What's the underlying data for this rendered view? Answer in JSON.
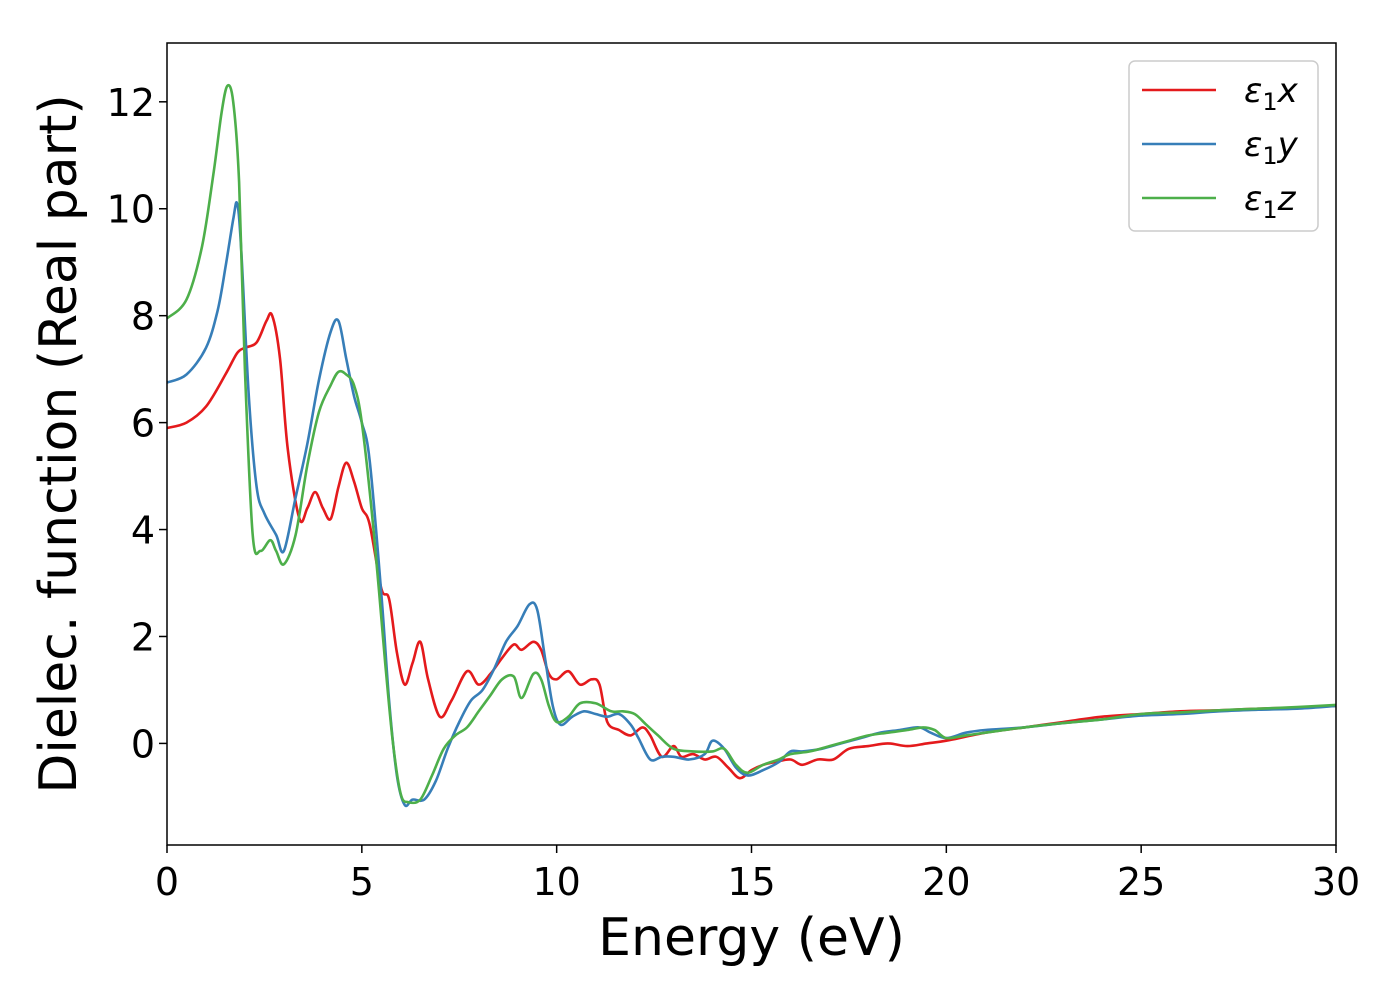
{
  "chart_data": {
    "type": "line",
    "title": "",
    "xlabel": "Energy (eV)",
    "ylabel": "Dielec. function (Real part)",
    "xlim": [
      0,
      30
    ],
    "ylim": [
      -1.9,
      13.1
    ],
    "xticks": [
      0,
      5,
      10,
      15,
      20,
      25,
      30
    ],
    "yticks": [
      0,
      2,
      4,
      6,
      8,
      10,
      12
    ],
    "grid": false,
    "legend_position": "top-right",
    "series": [
      {
        "name": "ε₁x",
        "legend_main": "ε",
        "legend_sub": "1",
        "legend_axis": "x",
        "color": "#e41a1c",
        "x": [
          0,
          0.5,
          1.0,
          1.5,
          1.8,
          2.0,
          2.3,
          2.55,
          2.7,
          2.9,
          3.1,
          3.4,
          3.6,
          3.8,
          4.0,
          4.2,
          4.4,
          4.6,
          4.8,
          5.0,
          5.2,
          5.5,
          5.7,
          5.9,
          6.1,
          6.3,
          6.5,
          6.7,
          7.0,
          7.3,
          7.7,
          8.0,
          8.3,
          8.6,
          8.9,
          9.1,
          9.4,
          9.6,
          9.8,
          10.0,
          10.3,
          10.6,
          10.9,
          11.1,
          11.3,
          11.6,
          11.9,
          12.2,
          12.4,
          12.7,
          13.0,
          13.2,
          13.5,
          13.8,
          14.1,
          14.4,
          14.7,
          15.0,
          15.3,
          15.6,
          16.0,
          16.3,
          16.7,
          17.1,
          17.5,
          18.0,
          18.5,
          19.0,
          19.5,
          20.0,
          21.0,
          22.0,
          23.0,
          24.0,
          25.0,
          26.0,
          27.0,
          28.0,
          29.0,
          30.0
        ],
        "values": [
          5.9,
          6.0,
          6.3,
          6.9,
          7.3,
          7.4,
          7.5,
          7.9,
          8.0,
          7.2,
          5.5,
          4.2,
          4.4,
          4.7,
          4.4,
          4.2,
          4.8,
          5.25,
          4.9,
          4.4,
          4.1,
          2.9,
          2.7,
          1.7,
          1.1,
          1.5,
          1.9,
          1.2,
          0.5,
          0.8,
          1.35,
          1.1,
          1.3,
          1.6,
          1.85,
          1.75,
          1.9,
          1.75,
          1.3,
          1.2,
          1.35,
          1.1,
          1.2,
          1.1,
          0.4,
          0.25,
          0.15,
          0.3,
          0.15,
          -0.25,
          -0.05,
          -0.25,
          -0.2,
          -0.3,
          -0.25,
          -0.45,
          -0.65,
          -0.5,
          -0.4,
          -0.35,
          -0.3,
          -0.4,
          -0.3,
          -0.3,
          -0.1,
          -0.05,
          0.0,
          -0.05,
          0.0,
          0.05,
          0.2,
          0.3,
          0.4,
          0.5,
          0.55,
          0.6,
          0.62,
          0.65,
          0.67,
          0.7
        ]
      },
      {
        "name": "ε₁y",
        "legend_main": "ε",
        "legend_sub": "1",
        "legend_axis": "y",
        "color": "#377eb8",
        "x": [
          0,
          0.5,
          1.0,
          1.3,
          1.5,
          1.7,
          1.8,
          1.9,
          2.1,
          2.3,
          2.5,
          2.8,
          3.0,
          3.3,
          3.6,
          3.9,
          4.2,
          4.4,
          4.6,
          4.8,
          5.0,
          5.2,
          5.5,
          5.7,
          5.9,
          6.1,
          6.3,
          6.6,
          6.9,
          7.2,
          7.5,
          7.8,
          8.1,
          8.4,
          8.7,
          9.0,
          9.3,
          9.5,
          9.7,
          9.9,
          10.1,
          10.4,
          10.7,
          11.0,
          11.3,
          11.6,
          11.9,
          12.1,
          12.4,
          12.7,
          13.0,
          13.4,
          13.8,
          14.0,
          14.3,
          14.6,
          14.9,
          15.3,
          15.7,
          16.0,
          16.3,
          16.8,
          17.3,
          17.8,
          18.3,
          18.8,
          19.3,
          19.6,
          20.0,
          20.5,
          21.0,
          22.0,
          23.0,
          24.0,
          25.0,
          26.0,
          27.0,
          28.0,
          29.0,
          30.0
        ],
        "values": [
          6.75,
          6.9,
          7.4,
          8.1,
          8.9,
          9.8,
          10.1,
          9.3,
          6.5,
          4.8,
          4.3,
          3.9,
          3.6,
          4.6,
          5.6,
          6.8,
          7.7,
          7.9,
          7.2,
          6.5,
          6.0,
          5.3,
          2.8,
          0.8,
          -0.6,
          -1.15,
          -1.05,
          -1.05,
          -0.7,
          -0.1,
          0.4,
          0.8,
          1.0,
          1.4,
          1.9,
          2.2,
          2.6,
          2.5,
          1.6,
          0.7,
          0.35,
          0.5,
          0.6,
          0.55,
          0.5,
          0.55,
          0.35,
          0.1,
          -0.3,
          -0.25,
          -0.25,
          -0.3,
          -0.2,
          0.05,
          -0.1,
          -0.45,
          -0.6,
          -0.5,
          -0.35,
          -0.15,
          -0.15,
          -0.1,
          0.0,
          0.1,
          0.2,
          0.25,
          0.3,
          0.2,
          0.1,
          0.2,
          0.25,
          0.3,
          0.38,
          0.45,
          0.52,
          0.55,
          0.6,
          0.63,
          0.65,
          0.7
        ]
      },
      {
        "name": "ε₁z",
        "legend_main": "ε",
        "legend_sub": "1",
        "legend_axis": "z",
        "color": "#4daf4a",
        "x": [
          0,
          0.5,
          0.9,
          1.2,
          1.4,
          1.55,
          1.7,
          1.85,
          2.0,
          2.2,
          2.4,
          2.65,
          2.8,
          3.0,
          3.3,
          3.6,
          3.9,
          4.2,
          4.4,
          4.6,
          4.8,
          5.0,
          5.3,
          5.6,
          5.8,
          6.0,
          6.2,
          6.5,
          6.8,
          7.1,
          7.4,
          7.7,
          8.0,
          8.3,
          8.6,
          8.9,
          9.1,
          9.4,
          9.6,
          9.8,
          10.0,
          10.3,
          10.6,
          11.0,
          11.4,
          11.7,
          12.0,
          12.3,
          12.6,
          13.0,
          13.5,
          14.0,
          14.3,
          14.6,
          14.9,
          15.3,
          15.7,
          16.0,
          16.5,
          17.0,
          17.5,
          18.0,
          18.5,
          19.0,
          19.4,
          19.7,
          20.0,
          20.5,
          21.0,
          22.0,
          23.0,
          24.0,
          25.0,
          26.0,
          27.0,
          28.0,
          29.0,
          30.0
        ],
        "values": [
          7.95,
          8.3,
          9.3,
          10.7,
          11.8,
          12.3,
          12.0,
          10.5,
          7.0,
          3.9,
          3.6,
          3.8,
          3.6,
          3.35,
          3.9,
          5.2,
          6.2,
          6.7,
          6.95,
          6.9,
          6.7,
          6.0,
          4.0,
          1.5,
          0.0,
          -0.95,
          -1.1,
          -1.05,
          -0.6,
          -0.1,
          0.15,
          0.3,
          0.6,
          0.9,
          1.2,
          1.25,
          0.85,
          1.3,
          1.2,
          0.7,
          0.4,
          0.5,
          0.75,
          0.75,
          0.6,
          0.6,
          0.55,
          0.35,
          0.15,
          -0.1,
          -0.15,
          -0.15,
          -0.1,
          -0.4,
          -0.55,
          -0.4,
          -0.3,
          -0.2,
          -0.15,
          -0.05,
          0.05,
          0.15,
          0.2,
          0.25,
          0.3,
          0.25,
          0.1,
          0.15,
          0.2,
          0.3,
          0.38,
          0.45,
          0.55,
          0.58,
          0.62,
          0.65,
          0.68,
          0.72
        ]
      }
    ]
  }
}
